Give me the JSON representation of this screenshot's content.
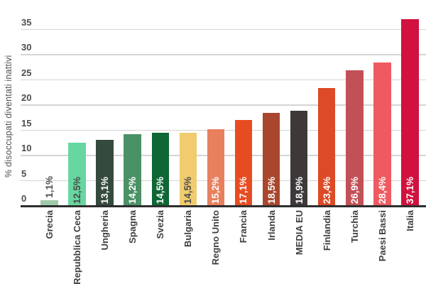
{
  "chart_data": {
    "type": "bar",
    "title": "",
    "xlabel": "",
    "ylabel": "% disoccupati diventati inattivi",
    "ylim": [
      0,
      37.5
    ],
    "yticks": [
      0,
      5,
      10,
      15,
      20,
      25,
      30,
      35
    ],
    "grid": "horizontal",
    "legend": "none",
    "categories": [
      "Grecia",
      "Repubblica Ceca",
      "Ungheria",
      "Spagna",
      "Svezia",
      "Bulgaria",
      "Regno Unito",
      "Francia",
      "Irlanda",
      "MEDIA EU",
      "Finlandia",
      "Turchia",
      "Paesi Bassi",
      "Italia"
    ],
    "values": [
      1.1,
      12.5,
      13.1,
      14.2,
      14.5,
      14.5,
      15.2,
      17.1,
      18.5,
      18.9,
      23.4,
      26.9,
      28.4,
      37.1
    ],
    "value_labels": [
      "1,1%",
      "12,5%",
      "13,1%",
      "14,2%",
      "14,5%",
      "14,5%",
      "15,2%",
      "17,1%",
      "18,5%",
      "18,9%",
      "23,4%",
      "26,9%",
      "28,4%",
      "37,1%"
    ],
    "bar_colors": [
      "#9fcaa9",
      "#67d6a0",
      "#344a3d",
      "#4a9166",
      "#0e6734",
      "#f0cc6e",
      "#e8805d",
      "#e74c21",
      "#a8472e",
      "#3e3839",
      "#dc4a26",
      "#c25157",
      "#ef5a62",
      "#d1113e"
    ],
    "value_label_colors": [
      "#4f4f4f",
      "#4a4a4a",
      "#ffffff",
      "#ffffff",
      "#ffffff",
      "#4a4a4a",
      "#ffffff",
      "#ffffff",
      "#ffffff",
      "#ffffff",
      "#ffffff",
      "#ffffff",
      "#ffffff",
      "#ffffff"
    ],
    "value_label_placement": [
      "above",
      "inside",
      "inside",
      "inside",
      "inside",
      "inside",
      "inside",
      "inside",
      "inside",
      "inside",
      "inside",
      "inside",
      "inside",
      "inside"
    ]
  },
  "colors": {
    "background": "#ffffff",
    "gridline": "#d4d4d4",
    "axis_line": "#2e2e2e",
    "tick_text": "#4d4d4d",
    "category_text": "#3f3f3f",
    "highlight_bar": "#d1113e"
  }
}
